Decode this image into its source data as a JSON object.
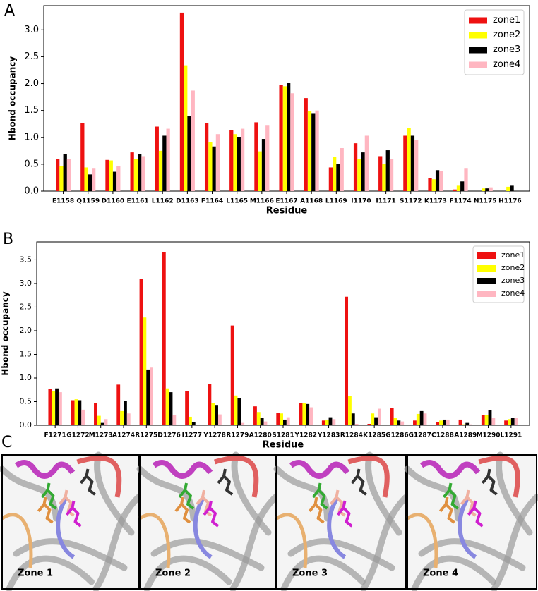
{
  "chart_data": [
    {
      "type": "bar",
      "panel": "A",
      "xlabel": "Residue",
      "ylabel": "Hbond occupancy",
      "categories": [
        "E1158",
        "Q1159",
        "D1160",
        "E1161",
        "L1162",
        "D1163",
        "F1164",
        "L1165",
        "M1166",
        "E1167",
        "A1168",
        "L1169",
        "I1170",
        "I1171",
        "S1172",
        "K1173",
        "F1174",
        "N1175",
        "H1176"
      ],
      "series": [
        {
          "name": "zone1",
          "color": "#ee1111",
          "values": [
            0.6,
            1.27,
            0.58,
            0.72,
            1.2,
            3.32,
            1.26,
            1.13,
            1.28,
            1.98,
            1.73,
            0.44,
            0.89,
            0.65,
            1.03,
            0.24,
            0.03,
            0,
            0
          ]
        },
        {
          "name": "zone2",
          "color": "#ffff00",
          "values": [
            0.47,
            0.44,
            0.57,
            0.6,
            0.75,
            2.34,
            0.91,
            1.06,
            0.74,
            1.95,
            1.49,
            0.64,
            0.59,
            0.51,
            1.17,
            0.22,
            0.1,
            0.05,
            0.08
          ]
        },
        {
          "name": "zone3",
          "color": "#000000",
          "values": [
            0.69,
            0.31,
            0.36,
            0.69,
            1.03,
            1.4,
            0.83,
            1.01,
            0.97,
            2.02,
            1.45,
            0.5,
            0.72,
            0.76,
            1.03,
            0.39,
            0.18,
            0.05,
            0.1
          ]
        },
        {
          "name": "zone4",
          "color": "#ffb6c1",
          "values": [
            0.6,
            0.43,
            0.47,
            0.65,
            1.16,
            1.87,
            1.06,
            1.16,
            1.23,
            1.82,
            1.5,
            0.8,
            1.03,
            0.6,
            0.95,
            0.38,
            0.43,
            0.07,
            0
          ]
        }
      ],
      "ylim": [
        0,
        3.45
      ],
      "yticks": [
        {
          "value": 0,
          "label": "0.0"
        },
        0.5,
        {
          "value": 1,
          "label": "1.0"
        },
        1.5,
        {
          "value": 2,
          "label": "2.0"
        },
        2.5,
        {
          "value": 3,
          "label": "3.0"
        }
      ],
      "grid": false,
      "legend": "upper right"
    },
    {
      "type": "bar",
      "panel": "B",
      "xlabel": "Residue",
      "ylabel": "Hbond occupancy",
      "categories": [
        "F1271",
        "G1272",
        "M1273",
        "A1274",
        "R1275",
        "D1276",
        "I1277",
        "Y1278",
        "R1279",
        "A1280",
        "S1281",
        "Y1282",
        "Y1283",
        "R1284",
        "K1285",
        "G1286",
        "G1287",
        "C1288",
        "A1289",
        "M1290",
        "L1291"
      ],
      "series": [
        {
          "name": "zone1",
          "color": "#ee1111",
          "values": [
            0.77,
            0.53,
            0.47,
            0.86,
            3.1,
            3.67,
            0.72,
            0.88,
            2.11,
            0.4,
            0.26,
            0.47,
            0.1,
            2.72,
            0.03,
            0.36,
            0.1,
            0.07,
            0.12,
            0.22,
            0.1
          ]
        },
        {
          "name": "zone2",
          "color": "#ffff00",
          "values": [
            0.72,
            0.55,
            0.2,
            0.3,
            2.28,
            0.78,
            0.18,
            0.47,
            0.63,
            0.28,
            0.25,
            0.47,
            0.12,
            0.62,
            0.25,
            0.15,
            0.24,
            0.1,
            0.02,
            0.22,
            0.13
          ]
        },
        {
          "name": "zone3",
          "color": "#000000",
          "values": [
            0.78,
            0.53,
            0.05,
            0.52,
            1.18,
            0.7,
            0.06,
            0.43,
            0.57,
            0.15,
            0.12,
            0.45,
            0.17,
            0.25,
            0.17,
            0.1,
            0.3,
            0.12,
            0.05,
            0.32,
            0.16
          ]
        },
        {
          "name": "zone4",
          "color": "#ffb6c1",
          "values": [
            0.7,
            0.33,
            0.13,
            0.25,
            1.22,
            0.22,
            0,
            0.23,
            0.05,
            0.08,
            0.17,
            0.38,
            0.13,
            0.03,
            0.35,
            0.08,
            0.25,
            0.12,
            0.02,
            0.15,
            0.15
          ]
        }
      ],
      "ylim": [
        0,
        3.88
      ],
      "yticks": [
        {
          "value": 0,
          "label": "0.0"
        },
        0.5,
        {
          "value": 1,
          "label": "1.0"
        },
        1.5,
        {
          "value": 2,
          "label": "2.0"
        },
        2.5,
        {
          "value": 3,
          "label": "3.0"
        },
        3.5
      ],
      "grid": false,
      "legend": "upper right"
    }
  ],
  "panel_c": {
    "label": "C",
    "zones": [
      "Zone 1",
      "Zone 2",
      "Zone 3",
      "Zone 4"
    ]
  }
}
